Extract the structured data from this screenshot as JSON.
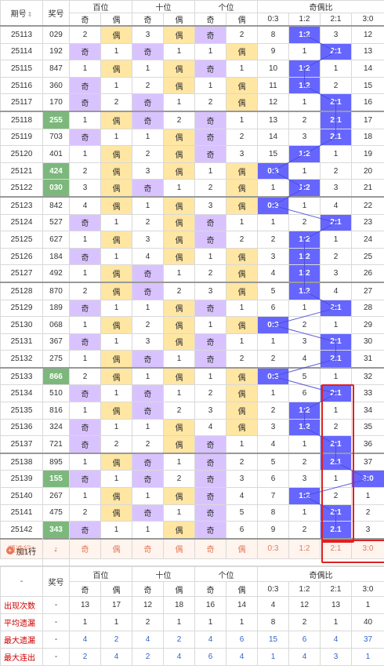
{
  "header": {
    "issue_label": "期号",
    "sort_icon": "sort-arrows-icon",
    "prize_label": "奖号",
    "groups": [
      "百位",
      "十位",
      "个位",
      "奇偶比"
    ],
    "odd_label": "奇",
    "even_label": "偶",
    "ratios": [
      "0:3",
      "1:2",
      "2:1",
      "3:0"
    ]
  },
  "rows": [
    {
      "issue": "25113",
      "num": "029",
      "hl": "",
      "d": [
        2,
        "E",
        3,
        "E",
        "O",
        2
      ],
      "r": [
        8,
        "1:2",
        3,
        12
      ]
    },
    {
      "issue": "25114",
      "num": "192",
      "hl": "",
      "d": [
        "O",
        1,
        "O",
        1,
        1,
        "E"
      ],
      "r": [
        9,
        1,
        "2:1",
        13
      ]
    },
    {
      "issue": "25115",
      "num": "847",
      "hl": "",
      "d": [
        1,
        "E",
        1,
        "E",
        "O",
        1
      ],
      "r": [
        10,
        "1:2",
        1,
        14
      ]
    },
    {
      "issue": "25116",
      "num": "360",
      "hl": "",
      "d": [
        "O",
        1,
        2,
        "E",
        1,
        "E"
      ],
      "r": [
        11,
        "1:2",
        2,
        15
      ]
    },
    {
      "issue": "25117",
      "num": "170",
      "hl": "",
      "d": [
        "O",
        2,
        "O",
        1,
        2,
        "E"
      ],
      "r": [
        12,
        1,
        "2:1",
        16
      ]
    },
    {
      "issue": "25118",
      "num": "255",
      "hl": "g",
      "d": [
        1,
        "E",
        "O",
        2,
        "O",
        1
      ],
      "r": [
        13,
        2,
        "2:1",
        17
      ]
    },
    {
      "issue": "25119",
      "num": "703",
      "hl": "",
      "d": [
        "O",
        1,
        1,
        "E",
        "O",
        2
      ],
      "r": [
        14,
        3,
        "2:1",
        18
      ]
    },
    {
      "issue": "25120",
      "num": "401",
      "hl": "",
      "d": [
        1,
        "E",
        2,
        "E",
        "O",
        3
      ],
      "r": [
        15,
        "1:2",
        1,
        19
      ]
    },
    {
      "issue": "25121",
      "num": "424",
      "hl": "g",
      "d": [
        2,
        "E",
        3,
        "E",
        1,
        "E"
      ],
      "r": [
        "0:3",
        1,
        2,
        20
      ]
    },
    {
      "issue": "25122",
      "num": "030",
      "hl": "g",
      "d": [
        3,
        "E",
        "O",
        1,
        2,
        "E"
      ],
      "r": [
        1,
        "1:2",
        3,
        21
      ]
    },
    {
      "issue": "25123",
      "num": "842",
      "hl": "",
      "d": [
        4,
        "E",
        1,
        "E",
        3,
        "E"
      ],
      "r": [
        "0:3",
        1,
        4,
        22
      ]
    },
    {
      "issue": "25124",
      "num": "527",
      "hl": "",
      "d": [
        "O",
        1,
        2,
        "E",
        "O",
        1
      ],
      "r": [
        1,
        2,
        "2:1",
        23
      ]
    },
    {
      "issue": "25125",
      "num": "627",
      "hl": "",
      "d": [
        1,
        "E",
        3,
        "E",
        "O",
        2
      ],
      "r": [
        2,
        "1:2",
        1,
        24
      ]
    },
    {
      "issue": "25126",
      "num": "184",
      "hl": "",
      "d": [
        "O",
        1,
        4,
        "E",
        1,
        "E"
      ],
      "r": [
        3,
        "1:2",
        2,
        25
      ]
    },
    {
      "issue": "25127",
      "num": "492",
      "hl": "",
      "d": [
        1,
        "E",
        "O",
        1,
        2,
        "E"
      ],
      "r": [
        4,
        "1:2",
        3,
        26
      ]
    },
    {
      "issue": "25128",
      "num": "870",
      "hl": "",
      "d": [
        2,
        "E",
        "O",
        2,
        3,
        "E"
      ],
      "r": [
        5,
        "1:2",
        4,
        27
      ]
    },
    {
      "issue": "25129",
      "num": "189",
      "hl": "",
      "d": [
        "O",
        1,
        1,
        "E",
        "O",
        1
      ],
      "r": [
        6,
        1,
        "2:1",
        28
      ]
    },
    {
      "issue": "25130",
      "num": "068",
      "hl": "",
      "d": [
        1,
        "E",
        2,
        "E",
        1,
        "E"
      ],
      "r": [
        "0:3",
        2,
        1,
        29
      ]
    },
    {
      "issue": "25131",
      "num": "367",
      "hl": "",
      "d": [
        "O",
        1,
        3,
        "E",
        "O",
        1
      ],
      "r": [
        1,
        3,
        "2:1",
        30
      ]
    },
    {
      "issue": "25132",
      "num": "275",
      "hl": "",
      "d": [
        1,
        "E",
        "O",
        1,
        "O",
        2
      ],
      "r": [
        2,
        4,
        "2:1",
        31
      ]
    },
    {
      "issue": "25133",
      "num": "866",
      "hl": "g",
      "d": [
        2,
        "E",
        1,
        "E",
        1,
        "E"
      ],
      "r": [
        "0:3",
        5,
        1,
        32
      ]
    },
    {
      "issue": "25134",
      "num": "510",
      "hl": "",
      "d": [
        "O",
        1,
        "O",
        1,
        2,
        "E"
      ],
      "r": [
        1,
        6,
        "2:1",
        33
      ]
    },
    {
      "issue": "25135",
      "num": "816",
      "hl": "",
      "d": [
        1,
        "E",
        "O",
        2,
        3,
        "E"
      ],
      "r": [
        2,
        "1:2",
        1,
        34
      ]
    },
    {
      "issue": "25136",
      "num": "324",
      "hl": "",
      "d": [
        "O",
        1,
        1,
        "E",
        4,
        "E"
      ],
      "r": [
        3,
        "1:2",
        2,
        35
      ]
    },
    {
      "issue": "25137",
      "num": "721",
      "hl": "",
      "d": [
        "O",
        2,
        2,
        "E",
        "O",
        1
      ],
      "r": [
        4,
        1,
        "2:1",
        36
      ]
    },
    {
      "issue": "25138",
      "num": "895",
      "hl": "",
      "d": [
        1,
        "E",
        "O",
        1,
        "O",
        2
      ],
      "r": [
        5,
        2,
        "2:1",
        37
      ]
    },
    {
      "issue": "25139",
      "num": "155",
      "hl": "g",
      "d": [
        "O",
        1,
        "O",
        2,
        "O",
        3
      ],
      "r": [
        6,
        3,
        1,
        "3:0"
      ]
    },
    {
      "issue": "25140",
      "num": "267",
      "hl": "",
      "d": [
        1,
        "E",
        1,
        "E",
        "O",
        4
      ],
      "r": [
        7,
        "1:2",
        2,
        1
      ]
    },
    {
      "issue": "25141",
      "num": "475",
      "hl": "",
      "d": [
        2,
        "E",
        "O",
        1,
        "O",
        5
      ],
      "r": [
        8,
        1,
        "2:1",
        2
      ]
    },
    {
      "issue": "25142",
      "num": "343",
      "hl": "g",
      "d": [
        "O",
        1,
        1,
        "E",
        "O",
        6
      ],
      "r": [
        9,
        2,
        "2:1",
        3
      ]
    }
  ],
  "preview": {
    "label": "预选行1",
    "num": "-",
    "cells": [
      "奇",
      "偶",
      "奇",
      "偶",
      "奇",
      "偶",
      "0:3",
      "1:2",
      "2:1",
      "3:0"
    ]
  },
  "add_row": {
    "label": "加1行",
    "value": "-",
    "icon": "plus-circle-icon"
  },
  "stats": {
    "dash": "-",
    "prize_label": "奖号",
    "rows": [
      {
        "label": "出现次数",
        "values": [
          13,
          17,
          12,
          18,
          16,
          14,
          4,
          12,
          13,
          1
        ],
        "blue": false
      },
      {
        "label": "平均遗漏",
        "values": [
          1,
          1,
          2,
          1,
          1,
          1,
          8,
          2,
          1,
          40
        ],
        "blue": false
      },
      {
        "label": "最大遗漏",
        "values": [
          4,
          2,
          4,
          2,
          4,
          6,
          15,
          6,
          4,
          37
        ],
        "blue": true
      },
      {
        "label": "最大连出",
        "values": [
          2,
          4,
          2,
          4,
          6,
          4,
          1,
          4,
          3,
          1
        ],
        "blue": true
      }
    ]
  }
}
